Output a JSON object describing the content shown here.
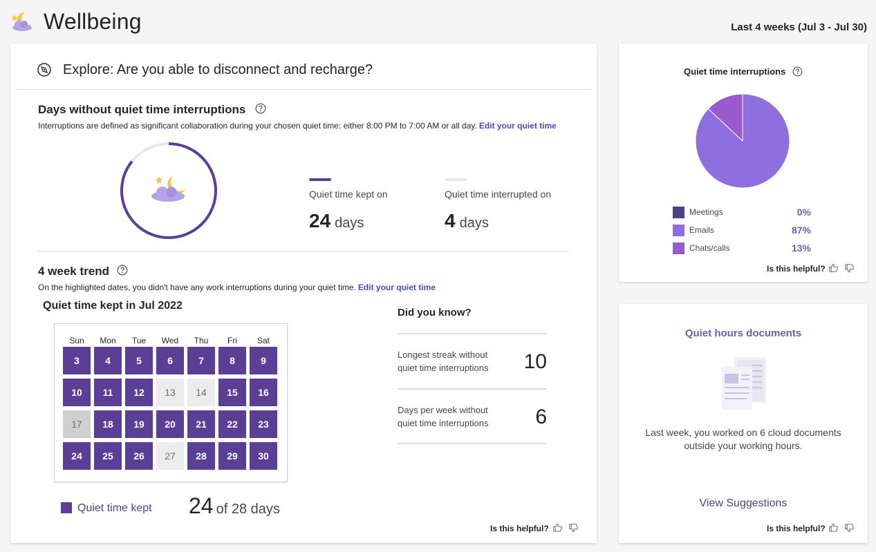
{
  "header": {
    "title": "Wellbeing",
    "date_range": "Last 4 weeks (Jul 3 - Jul 30)"
  },
  "main": {
    "explore_title": "Explore: Are you able to disconnect and recharge?",
    "days_section": {
      "title": "Days without quiet time interruptions",
      "description": "Interruptions are defined as significant collaboration during your chosen quiet time: either 8:00 PM to 7:00 AM or all day.",
      "edit_link": "Edit your quiet time",
      "ring_fraction_kept": 0.857,
      "kept_label": "Quiet time kept on",
      "kept_value": "24",
      "kept_unit": "days",
      "interrupted_label": "Quiet time interrupted on",
      "interrupted_value": "4",
      "interrupted_unit": "days"
    },
    "trend_section": {
      "title": "4 week trend",
      "description": "On the highlighted dates, you didn't have any work interruptions during your quiet time.",
      "edit_link": "Edit your quiet time",
      "calendar_title": "Quiet time kept in Jul 2022",
      "weekdays": [
        "Sun",
        "Mon",
        "Tue",
        "Wed",
        "Thu",
        "Fri",
        "Sat"
      ],
      "weeks": [
        [
          {
            "d": "3",
            "s": "kept"
          },
          {
            "d": "4",
            "s": "kept"
          },
          {
            "d": "5",
            "s": "kept"
          },
          {
            "d": "6",
            "s": "kept"
          },
          {
            "d": "7",
            "s": "kept"
          },
          {
            "d": "8",
            "s": "kept"
          },
          {
            "d": "9",
            "s": "kept"
          }
        ],
        [
          {
            "d": "10",
            "s": "kept"
          },
          {
            "d": "11",
            "s": "kept"
          },
          {
            "d": "12",
            "s": "kept"
          },
          {
            "d": "13",
            "s": "missed"
          },
          {
            "d": "14",
            "s": "missed"
          },
          {
            "d": "15",
            "s": "kept"
          },
          {
            "d": "16",
            "s": "kept"
          }
        ],
        [
          {
            "d": "17",
            "s": "missed-dark"
          },
          {
            "d": "18",
            "s": "kept"
          },
          {
            "d": "19",
            "s": "kept"
          },
          {
            "d": "20",
            "s": "kept"
          },
          {
            "d": "21",
            "s": "kept"
          },
          {
            "d": "22",
            "s": "kept"
          },
          {
            "d": "23",
            "s": "kept"
          }
        ],
        [
          {
            "d": "24",
            "s": "kept"
          },
          {
            "d": "25",
            "s": "kept"
          },
          {
            "d": "26",
            "s": "kept"
          },
          {
            "d": "27",
            "s": "missed"
          },
          {
            "d": "28",
            "s": "kept"
          },
          {
            "d": "29",
            "s": "kept"
          },
          {
            "d": "30",
            "s": "kept"
          }
        ]
      ],
      "legend_label": "Quiet time kept",
      "legend_count": "24",
      "legend_total": "of 28 days"
    },
    "did_you_know": {
      "title": "Did you know?",
      "items": [
        {
          "label": "Longest streak without quiet time interruptions",
          "value": "10"
        },
        {
          "label": "Days per week without quiet time interruptions",
          "value": "6"
        }
      ]
    },
    "helpful_label": "Is this helpful?"
  },
  "pie_card": {
    "title": "Quiet time interruptions",
    "helpful_label": "Is this helpful?"
  },
  "chart_data": {
    "type": "pie",
    "title": "Quiet time interruptions",
    "categories": [
      "Meetings",
      "Emails",
      "Chats/calls"
    ],
    "values": [
      0,
      87,
      13
    ],
    "labels": [
      "0%",
      "87%",
      "13%"
    ],
    "colors": [
      "#4f3f8f",
      "#8f6fe0",
      "#9b59d0"
    ]
  },
  "docs_card": {
    "title": "Quiet hours documents",
    "text": "Last week, you worked on 6 cloud documents outside your working hours.",
    "link": "View Suggestions",
    "helpful_label": "Is this helpful?"
  },
  "colors": {
    "accent": "#5b3f97",
    "link": "#3f51b5",
    "kept_bar": "#5b3f97",
    "interrupted_bar": "#e8e8e8"
  },
  "icons": [
    "wellbeing-moon-icon",
    "compass-icon",
    "help-icon",
    "thumbs-up-icon",
    "thumbs-down-icon",
    "documents-icon"
  ]
}
